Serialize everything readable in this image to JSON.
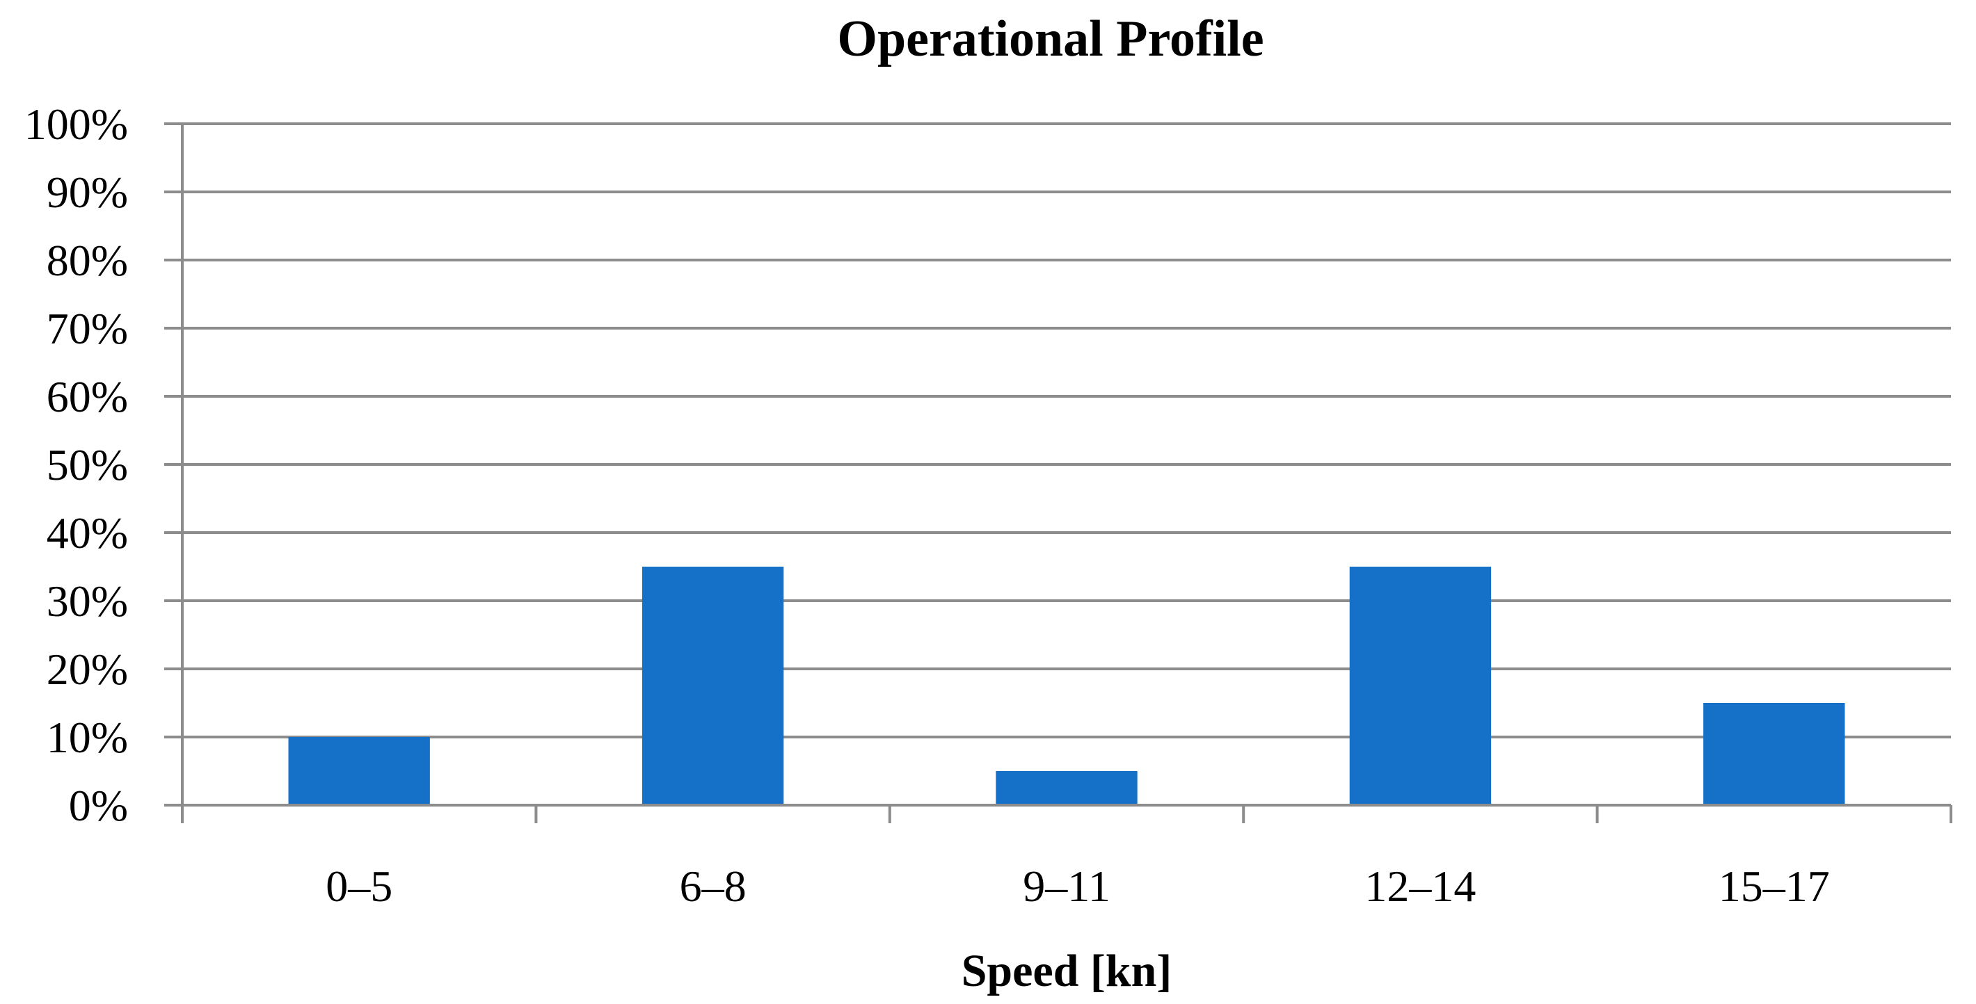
{
  "chart_data": {
    "type": "bar",
    "title": "Operational Profile",
    "xlabel": "Speed [kn]",
    "ylabel": "",
    "categories": [
      "0–5",
      "6–8",
      "9–11",
      "12–14",
      "15–17"
    ],
    "values": [
      10,
      35,
      5,
      35,
      15
    ],
    "ylim": [
      0,
      100
    ],
    "yticks": [
      0,
      10,
      20,
      30,
      40,
      50,
      60,
      70,
      80,
      90,
      100
    ],
    "ytick_labels": [
      "0%",
      "10%",
      "20%",
      "30%",
      "40%",
      "50%",
      "60%",
      "70%",
      "80%",
      "90%",
      "100%"
    ],
    "grid": true,
    "legend": "none",
    "bar_color": "#1570c8"
  }
}
